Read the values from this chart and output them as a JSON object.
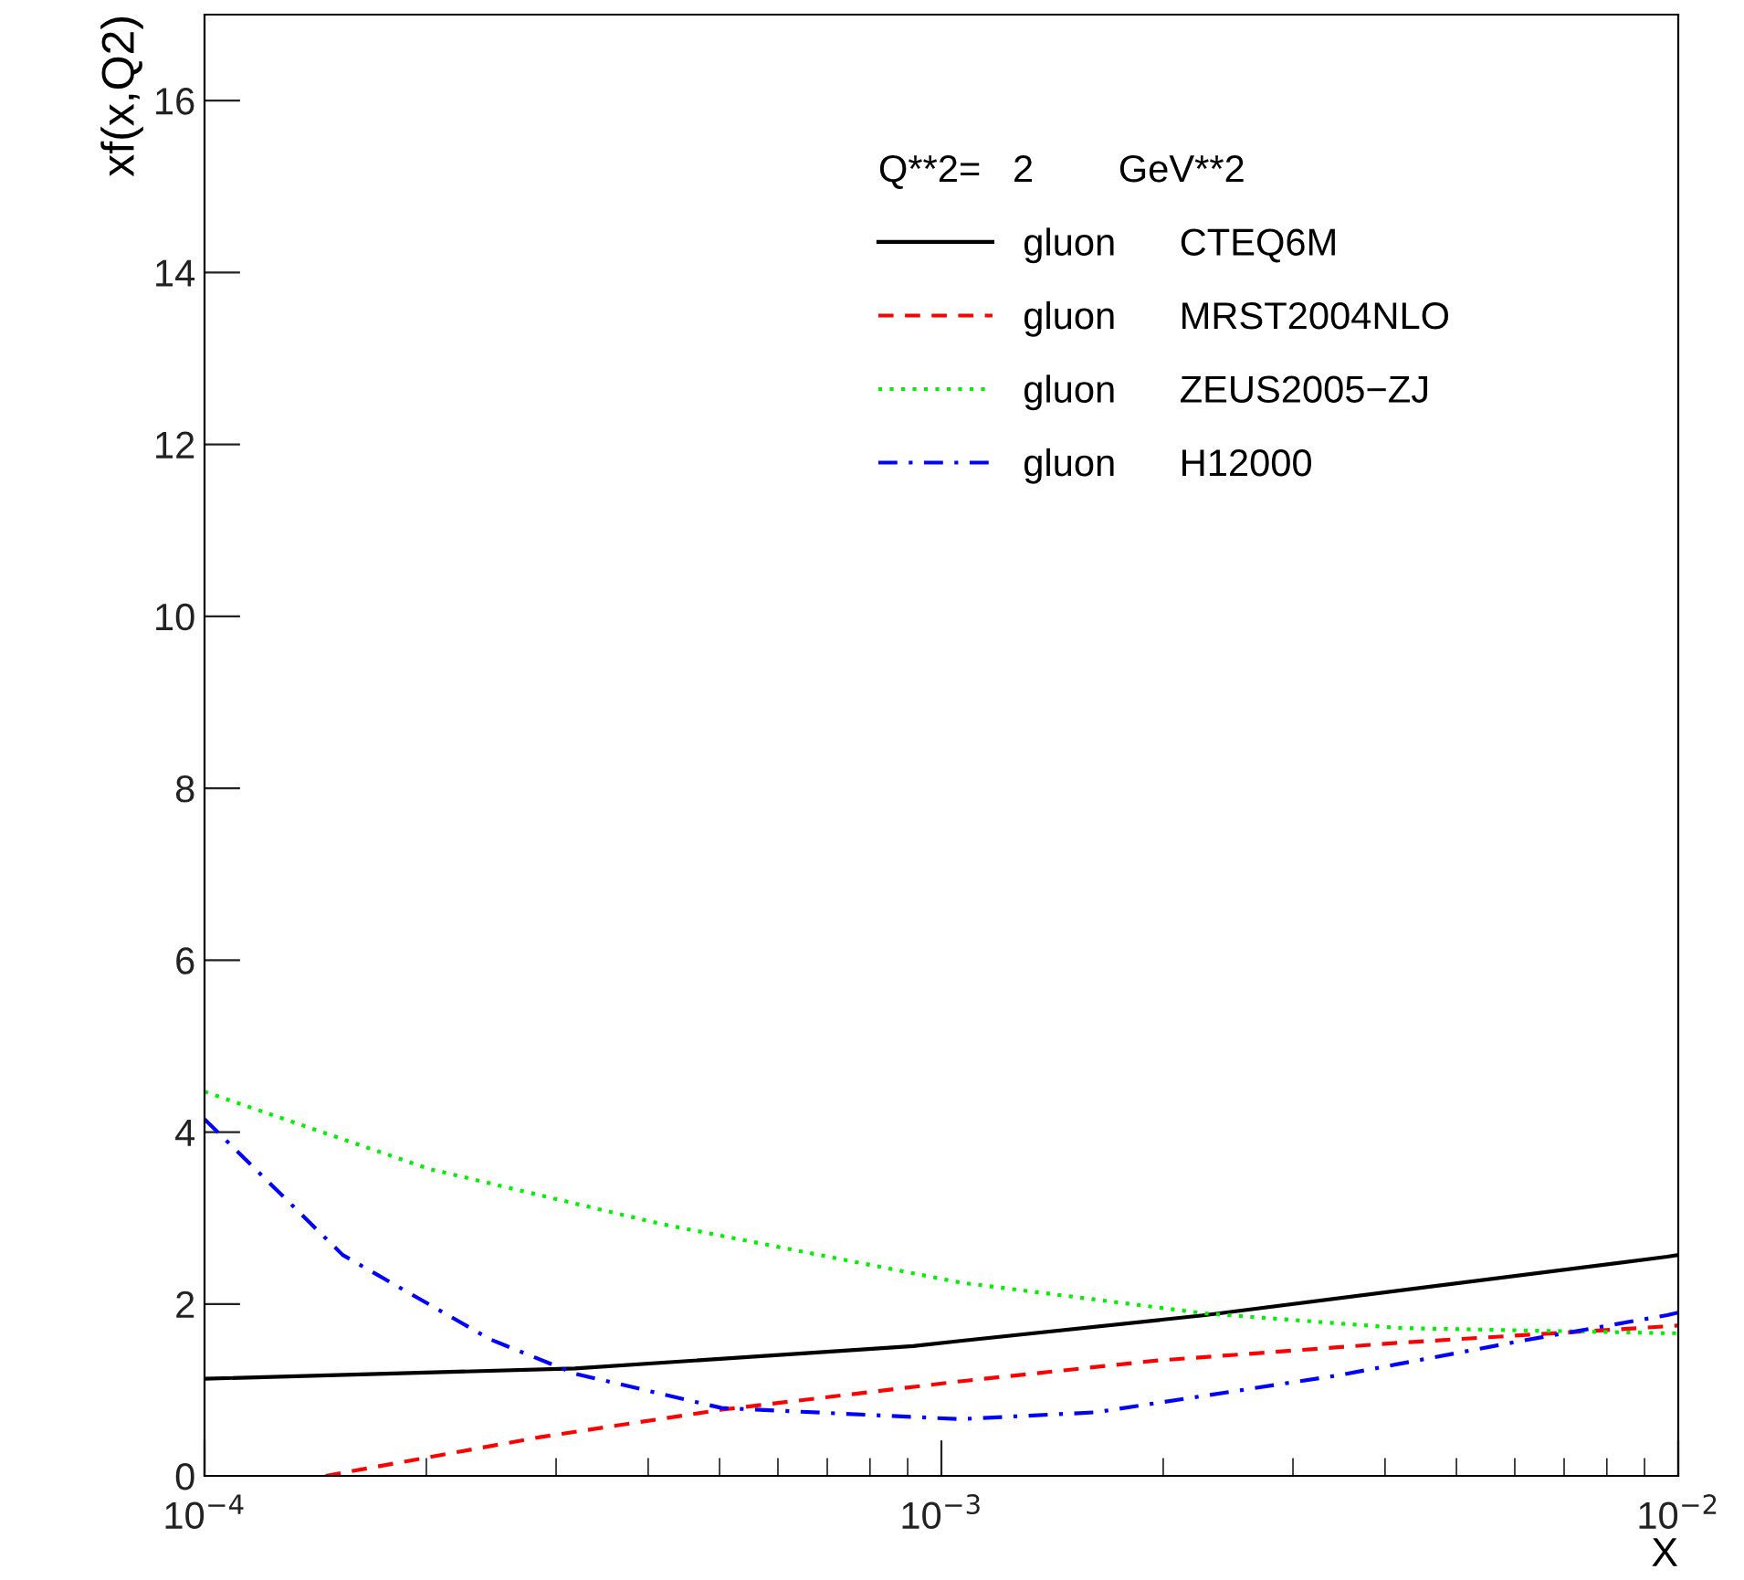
{
  "chart_data": {
    "type": "line",
    "xlabel": "X",
    "ylabel": "xf(x,Q2)",
    "legend_title": "Q**2=   2        GeV**2",
    "log": "x",
    "xlim": [
      0.0001,
      0.01
    ],
    "ylim": [
      0,
      17
    ],
    "xticks": [
      {
        "value": 0.0001,
        "label": "10$^{−4}$"
      },
      {
        "value": 0.001,
        "label": "10$^{−3}$"
      },
      {
        "value": 0.01,
        "label": "10$^{−2}$"
      }
    ],
    "yticks": [
      0,
      2,
      4,
      6,
      8,
      10,
      12,
      14,
      16
    ],
    "grid": false,
    "legend": "top right",
    "marker": "none",
    "series": [
      {
        "name": "gluon      CTEQ6M",
        "color": "#000000",
        "line_style": "solid",
        "x": [
          0.0001,
          0.000318,
          0.000916,
          0.00106,
          0.00228,
          0.00966,
          0.01
        ],
        "values": [
          1.13,
          1.25,
          1.51,
          1.57,
          1.87,
          2.55,
          2.57
        ]
      },
      {
        "name": "gluon      MRST2004NLO",
        "color": "#ff0000",
        "line_style": "dashed",
        "x": [
          0.000146,
          0.000285,
          0.000503,
          0.00106,
          0.00195,
          0.0042,
          0.00966,
          0.01
        ],
        "values": [
          0,
          0.45,
          0.77,
          1.1,
          1.34,
          1.55,
          1.74,
          1.75
        ]
      },
      {
        "name": "gluon      ZEUS2005−ZJ",
        "color": "#00ee00",
        "line_style": "dotted",
        "x": [
          0.0001,
          0.000202,
          0.000417,
          0.00106,
          0.00228,
          0.0042,
          0.00966,
          0.01
        ],
        "values": [
          4.47,
          3.57,
          2.93,
          2.25,
          1.89,
          1.72,
          1.66,
          1.66
        ]
      },
      {
        "name": "gluon      H12000",
        "color": "#0000ff",
        "line_style": "dashdot",
        "x": [
          0.0001,
          0.000154,
          0.000244,
          0.000318,
          0.000503,
          0.00106,
          0.00162,
          0.00346,
          0.00612,
          0.00966,
          0.01
        ],
        "values": [
          4.15,
          2.57,
          1.59,
          1.19,
          0.79,
          0.66,
          0.74,
          1.17,
          1.57,
          1.87,
          1.9
        ]
      }
    ]
  }
}
